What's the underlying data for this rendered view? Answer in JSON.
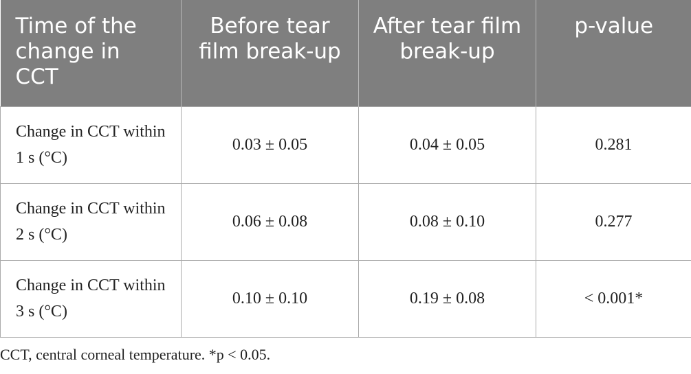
{
  "table": {
    "header": [
      "Time of the change in CCT",
      "Before tear film break-up",
      "After tear film break-up",
      "p-value"
    ],
    "rows": [
      [
        "Change in CCT within 1 s (°C)",
        "0.03 ± 0.05",
        "0.04 ± 0.05",
        "0.281"
      ],
      [
        "Change in CCT within 2 s (°C)",
        "0.06 ± 0.08",
        "0.08 ± 0.10",
        "0.277"
      ],
      [
        "Change in CCT within 3 s (°C)",
        "0.10 ± 0.10",
        "0.19 ± 0.08",
        "< 0.001*"
      ]
    ]
  },
  "footnote": "CCT, central corneal temperature. *p < 0.05."
}
